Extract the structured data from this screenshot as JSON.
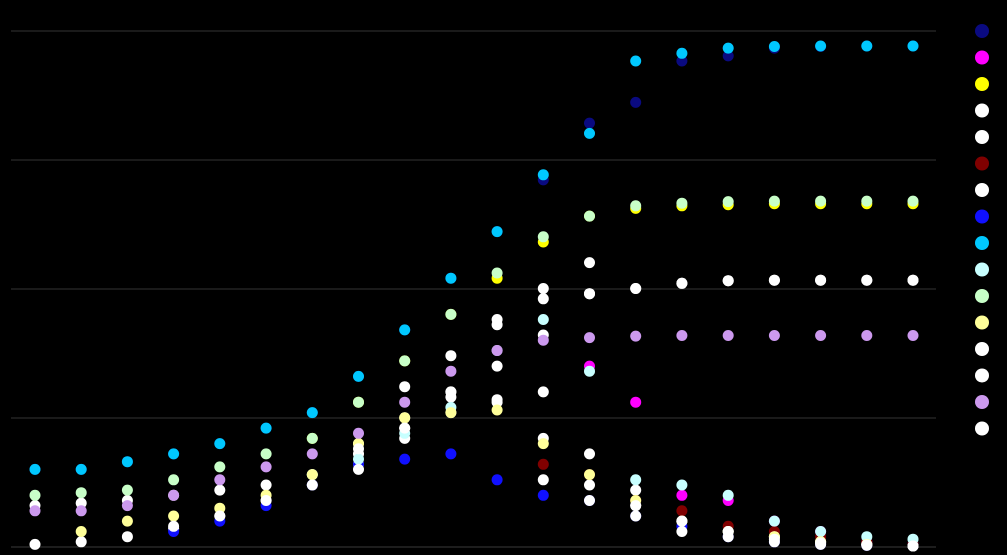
{
  "chart_data": {
    "type": "scatter",
    "title": "",
    "xlabel": "",
    "ylabel": "",
    "x": [
      1,
      2,
      3,
      4,
      5,
      6,
      7,
      8,
      9,
      10,
      11,
      12,
      13,
      14,
      15,
      16,
      17,
      18,
      19,
      20
    ],
    "xlim": [
      0.5,
      20.5
    ],
    "ylim": [
      0,
      100
    ],
    "grid": true,
    "legend": "right",
    "series": [
      {
        "color": "#0a0a80",
        "values": [
          15,
          15,
          16.5,
          18,
          20,
          23,
          26,
          33,
          42,
          52,
          61,
          71,
          82,
          86,
          94,
          95,
          96.5,
          96.8,
          96.9,
          96.9
        ]
      },
      {
        "color": "#ff00ff",
        "values": [
          null,
          null,
          null,
          null,
          null,
          null,
          null,
          null,
          null,
          null,
          null,
          null,
          35,
          28,
          10,
          9,
          5,
          3,
          1,
          0.5
        ]
      },
      {
        "color": "#ffff00",
        "values": [
          null,
          null,
          null,
          null,
          null,
          null,
          21,
          28,
          36,
          45,
          52,
          59,
          64,
          65.5,
          66,
          66.2,
          66.4,
          66.4,
          66.4,
          66.4
        ]
      },
      {
        "color": "#ffffff",
        "values": [
          8,
          8.5,
          9,
          10,
          11,
          12,
          14,
          18,
          23,
          30,
          35,
          41,
          49,
          50,
          51,
          51.5,
          51.6,
          51.6,
          51.6,
          51.6
        ]
      },
      {
        "color": "#ffffff",
        "values": [
          0.5,
          1,
          2,
          3.5,
          6,
          9,
          12,
          16,
          21,
          26,
          28,
          30,
          18,
          11,
          5,
          3,
          2,
          1,
          0.5,
          0.2
        ]
      },
      {
        "color": "#800000",
        "values": [
          null,
          null,
          null,
          null,
          null,
          null,
          null,
          null,
          null,
          null,
          null,
          16,
          14,
          9,
          7,
          4,
          3,
          2,
          1,
          0.5
        ]
      },
      {
        "color": "#ffffff",
        "values": [
          null,
          null,
          null,
          null,
          null,
          null,
          null,
          20,
          25,
          29,
          28.5,
          21,
          12,
          8,
          5,
          3,
          2,
          1,
          0.5,
          0.2
        ]
      },
      {
        "color": "#1010ff",
        "values": [
          null,
          null,
          null,
          3,
          5,
          8,
          12,
          16,
          17,
          18,
          13,
          10,
          9,
          6,
          4,
          2,
          1,
          0.5,
          0.3,
          0.2
        ]
      },
      {
        "color": "#00c8ff",
        "values": [
          15,
          15,
          16.5,
          18,
          20,
          23,
          26,
          33,
          42,
          52,
          61,
          72,
          80,
          94,
          95.5,
          96.5,
          96.8,
          96.9,
          96.9,
          96.9
        ]
      },
      {
        "color": "#c8ffff",
        "values": [
          null,
          null,
          null,
          null,
          null,
          null,
          14,
          17,
          22,
          27,
          38,
          44,
          34,
          13,
          12,
          10,
          5,
          3,
          2,
          1.5
        ]
      },
      {
        "color": "#c8ffc8",
        "values": [
          10,
          10.5,
          11,
          13,
          15.5,
          18,
          21,
          28,
          36,
          45,
          53,
          60,
          64,
          66,
          66.5,
          66.8,
          66.9,
          66.9,
          66.9,
          66.9
        ]
      },
      {
        "color": "#ffff99",
        "values": [
          null,
          3,
          5,
          6,
          7.5,
          10,
          14,
          20,
          25,
          26,
          26.5,
          20,
          14,
          9,
          5,
          3,
          2,
          1,
          0.5,
          0.2
        ]
      },
      {
        "color": "#ffffff",
        "values": [
          null,
          null,
          null,
          4,
          6,
          9,
          12,
          15,
          23,
          30,
          43,
          50,
          55,
          8,
          5,
          3,
          1.5,
          0.8,
          0.4,
          0.2
        ]
      },
      {
        "color": "#ffffff",
        "values": [
          null,
          null,
          null,
          null,
          null,
          null,
          null,
          19,
          31,
          37,
          44,
          48,
          49,
          50,
          51,
          51.5,
          51.6,
          51.6,
          51.6,
          51.6
        ]
      },
      {
        "color": "#cc99ee",
        "values": [
          7,
          7,
          8,
          10,
          13,
          15.5,
          18,
          22,
          28,
          34,
          38,
          40,
          40.5,
          40.8,
          40.9,
          40.9,
          40.9,
          40.9,
          40.9,
          40.9
        ]
      },
      {
        "color": "#ffffff",
        "values": [
          null,
          null,
          null,
          null,
          null,
          null,
          null,
          null,
          null,
          null,
          null,
          13,
          9,
          6,
          3,
          2,
          1,
          0.5,
          0.3,
          0.2
        ]
      }
    ]
  }
}
